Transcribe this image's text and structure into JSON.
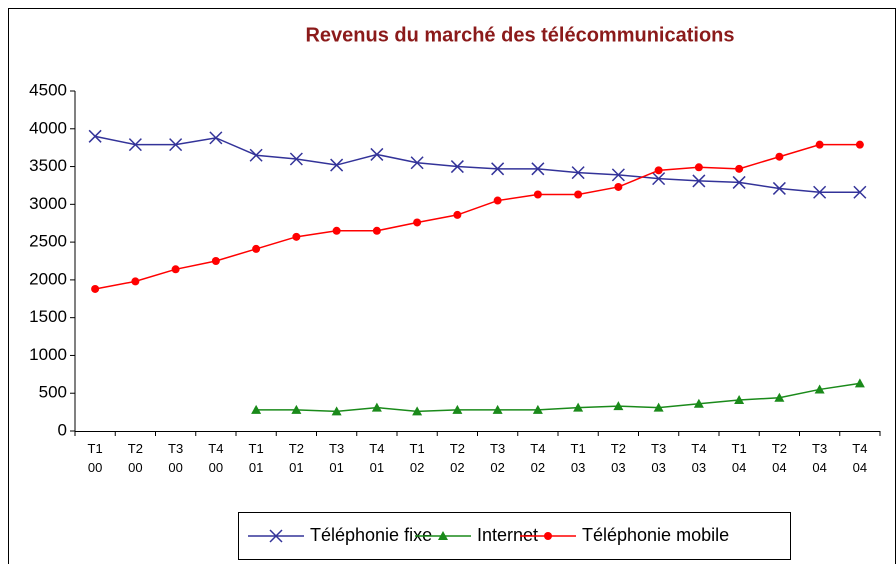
{
  "chart_data": {
    "type": "line",
    "title": "Revenus du marché des télécommunications",
    "categories": [
      "T1 00",
      "T2 00",
      "T3 00",
      "T4 00",
      "T1 01",
      "T2 01",
      "T3 01",
      "T4 01",
      "T1 02",
      "T2 02",
      "T3 02",
      "T4 02",
      "T1 03",
      "T2 03",
      "T3 03",
      "T4 03",
      "T1 04",
      "T2 04",
      "T3 04",
      "T4 04"
    ],
    "series": [
      {
        "name": "Téléphonie fixe",
        "color": "#333399",
        "marker": "x",
        "values": [
          3900,
          3790,
          3790,
          3880,
          3650,
          3600,
          3520,
          3660,
          3550,
          3500,
          3470,
          3470,
          3420,
          3390,
          3340,
          3310,
          3290,
          3210,
          3160,
          3160
        ]
      },
      {
        "name": "Internet",
        "color": "#1a8a1a",
        "marker": "triangle",
        "values": [
          null,
          null,
          null,
          null,
          280,
          280,
          260,
          310,
          260,
          280,
          280,
          280,
          310,
          330,
          310,
          360,
          410,
          440,
          550,
          630
        ]
      },
      {
        "name": "Téléphonie mobile",
        "color": "#ff0000",
        "marker": "circle",
        "values": [
          1880,
          1980,
          2140,
          2250,
          2410,
          2570,
          2650,
          2650,
          2760,
          2860,
          3050,
          3130,
          3130,
          3230,
          3450,
          3490,
          3470,
          3630,
          3790,
          3790
        ]
      }
    ],
    "ylim": [
      0,
      4500
    ],
    "yticks": [
      0,
      500,
      1000,
      1500,
      2000,
      2500,
      3000,
      3500,
      4000,
      4500
    ],
    "legend": "bottom"
  }
}
